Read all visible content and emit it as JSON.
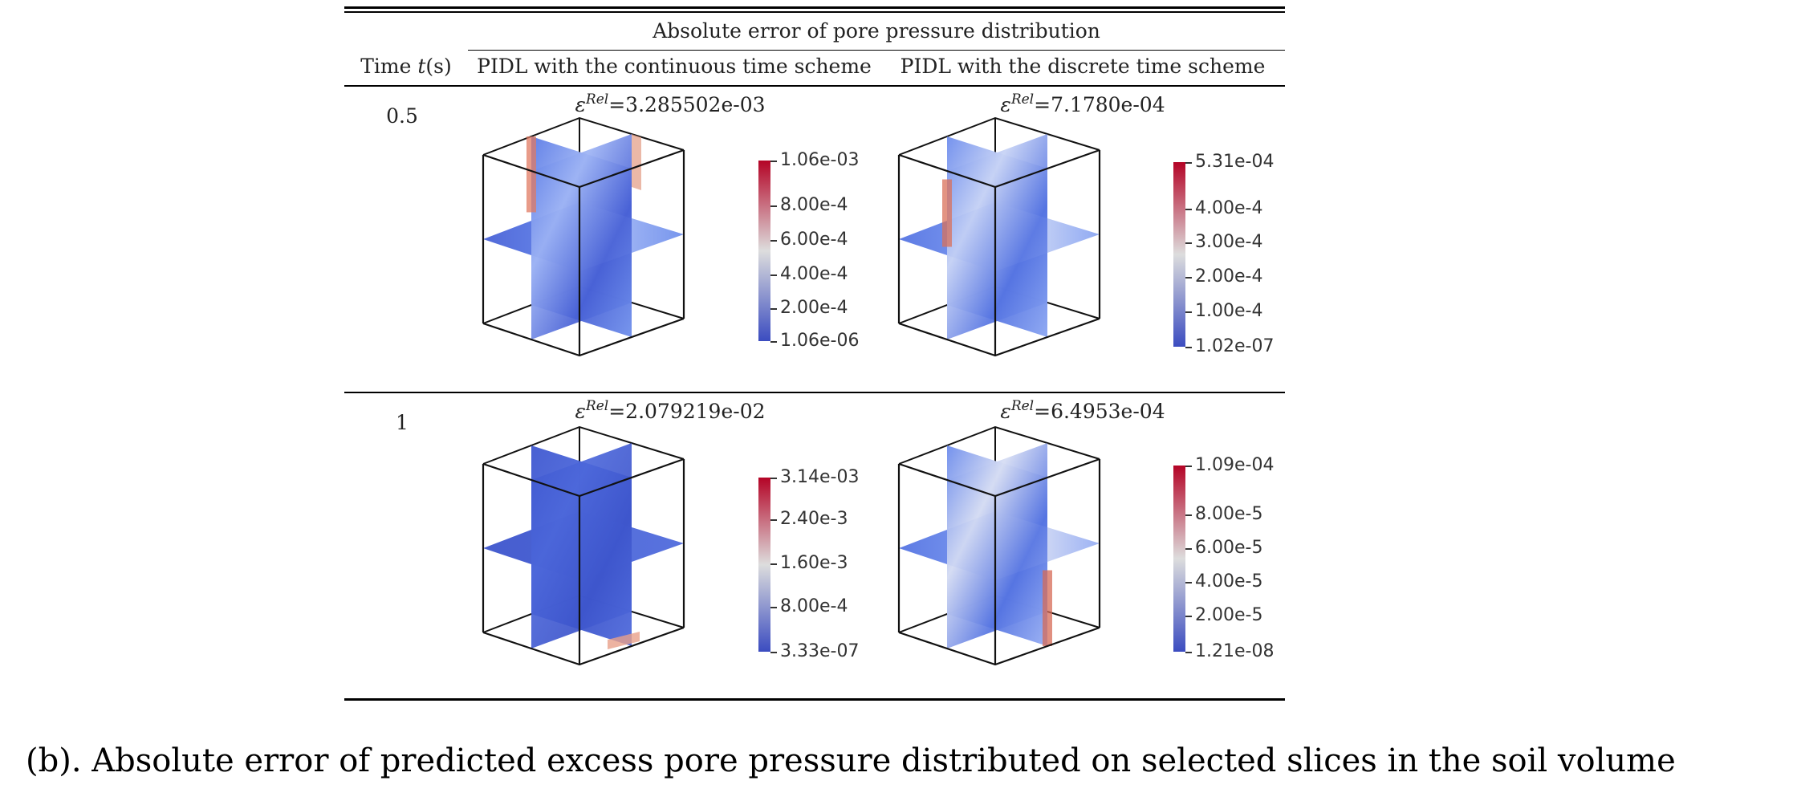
{
  "table": {
    "group_header": "Absolute error of pore pressure distribution",
    "col_time": "Time t(s)",
    "col_time_plain": "Time ",
    "col_time_var": "t",
    "col_time_unit": "(s)",
    "col_continuous": "PIDL with the continuous time scheme",
    "col_discrete": "PIDL with the discrete time scheme",
    "rows": [
      {
        "time": "0.5",
        "continuous": {
          "eps_symbol": "ε",
          "eps_sup": "Rel",
          "eps_value": "=3.285502e-03",
          "colorbar_ticks": [
            "1.06e-03",
            "8.00e-4",
            "6.00e-4",
            "4.00e-4",
            "2.00e-4",
            "1.06e-06"
          ]
        },
        "discrete": {
          "eps_symbol": "ε",
          "eps_sup": "Rel",
          "eps_value": "=7.1780e-04",
          "colorbar_ticks": [
            "5.31e-04",
            "4.00e-4",
            "3.00e-4",
            "2.00e-4",
            "1.00e-4",
            "1.02e-07"
          ]
        }
      },
      {
        "time": "1",
        "continuous": {
          "eps_symbol": "ε",
          "eps_sup": "Rel",
          "eps_value": "=2.079219e-02",
          "colorbar_ticks": [
            "3.14e-03",
            "2.40e-3",
            "1.60e-3",
            "8.00e-4",
            "3.33e-07"
          ]
        },
        "discrete": {
          "eps_symbol": "ε",
          "eps_sup": "Rel",
          "eps_value": "=6.4953e-04",
          "colorbar_ticks": [
            "1.09e-04",
            "8.00e-5",
            "6.00e-5",
            "4.00e-5",
            "2.00e-5",
            "1.21e-08"
          ]
        }
      }
    ]
  },
  "caption": "(b). Absolute error of predicted excess pore pressure distributed on selected slices in the soil volume",
  "colors": {
    "colormap_low": "#3b4cc0",
    "colormap_mid": "#dddddd",
    "colormap_high": "#b40426",
    "rule": "#000000",
    "text": "#222222"
  }
}
